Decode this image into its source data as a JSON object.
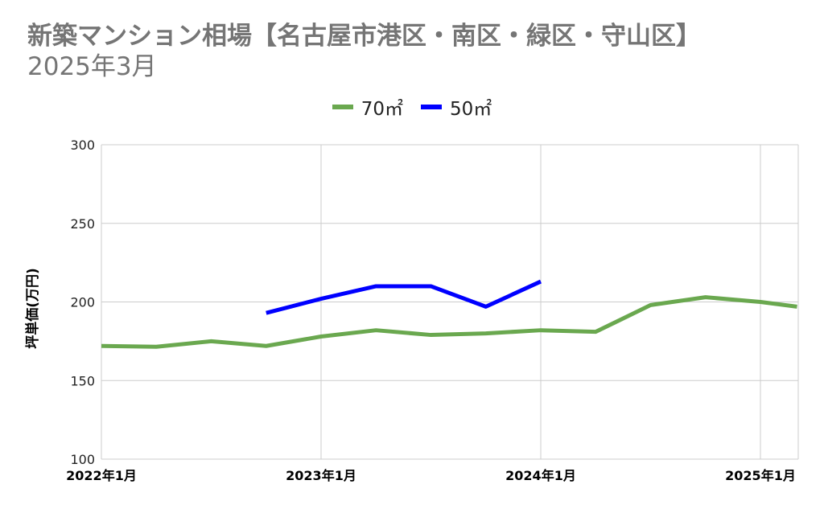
{
  "title": "新築マンション相場【名古屋市港区・南区・緑区・守山区】",
  "subtitle": "2025年3月",
  "colors": {
    "series_70": "#6aa84f",
    "series_50": "#0000ff",
    "grid": "#cccccc",
    "axis_text": "#000000"
  },
  "chart_data": {
    "type": "line",
    "title": "新築マンション相場【名古屋市港区・南区・緑区・守山区】",
    "subtitle": "2025年3月",
    "ylabel": "坪単価(万円)",
    "xlabel": "",
    "ylim": [
      100,
      300
    ],
    "yticks": [
      100,
      150,
      200,
      250,
      300
    ],
    "xticks": [
      "2022年1月",
      "2023年1月",
      "2024年1月",
      "2025年1月"
    ],
    "x": [
      "2022-01",
      "2022-04",
      "2022-07",
      "2022-10",
      "2023-01",
      "2023-04",
      "2023-07",
      "2023-10",
      "2024-01",
      "2024-04",
      "2024-07",
      "2024-10",
      "2025-01",
      "2025-03"
    ],
    "legend_position": "top",
    "grid": true,
    "series": [
      {
        "name": "70㎡",
        "color": "#6aa84f",
        "values": [
          172,
          171.5,
          175,
          172,
          178,
          182,
          179,
          180,
          182,
          181,
          198,
          203,
          200,
          197
        ]
      },
      {
        "name": "50㎡",
        "color": "#0000ff",
        "values": [
          null,
          null,
          null,
          193,
          202,
          210,
          210,
          197,
          213,
          null,
          null,
          null,
          null,
          null
        ]
      }
    ]
  }
}
